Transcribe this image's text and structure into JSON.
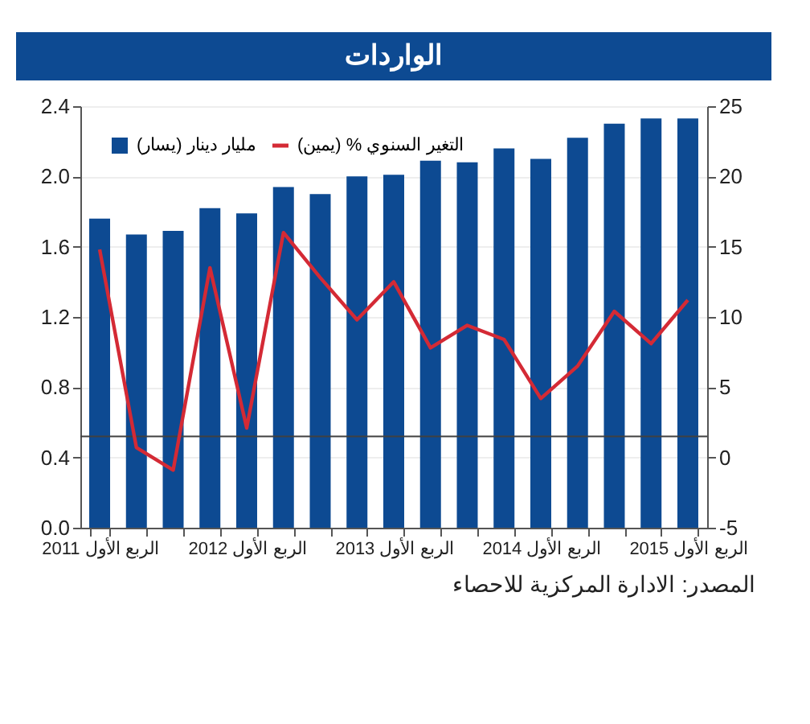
{
  "chart_data": {
    "type": "bar",
    "title": "الواردات",
    "categories": [
      "الربع الأول 2011",
      null,
      null,
      null,
      "الربع الأول 2012",
      null,
      null,
      null,
      "الربع الأول 2013",
      null,
      null,
      null,
      "الربع الأول 2014",
      null,
      null,
      null,
      "الربع الأول 2015"
    ],
    "series": [
      {
        "name": "مليار دينار (يسار)",
        "color": "#0d4a92",
        "values": [
          1.76,
          1.67,
          1.69,
          1.82,
          1.79,
          1.94,
          1.9,
          2.0,
          2.01,
          2.09,
          2.08,
          2.16,
          2.1,
          2.22,
          2.3,
          2.33,
          2.33
        ]
      },
      {
        "name": "التغير السنوي % (يمين)",
        "type": "line",
        "axis": "y2",
        "color": "#d42a35",
        "values": [
          14.8,
          0.7,
          -0.9,
          13.5,
          2.1,
          16.0,
          12.8,
          9.8,
          12.5,
          7.8,
          9.4,
          8.4,
          4.2,
          6.5,
          10.4,
          8.1,
          11.2
        ]
      }
    ],
    "ylim": [
      0,
      2.4
    ],
    "yticks": [
      {
        "value": 0,
        "label": "0.0"
      },
      0.4,
      0.8,
      1.2,
      1.6,
      {
        "value": 2,
        "label": "2.0"
      },
      2.4
    ],
    "y2lim": [
      -5,
      25
    ],
    "y2ticks": [
      -5,
      0,
      5,
      10,
      15,
      20,
      25
    ],
    "ref_lines": [
      {
        "axis": "y",
        "value": 0.52,
        "color": "#404040"
      }
    ],
    "annotations": [
      "المصدر: الادارة المركزية للاحصاء"
    ],
    "grid": "y",
    "legend": "top left",
    "line_style": "solid",
    "marker": "none"
  }
}
